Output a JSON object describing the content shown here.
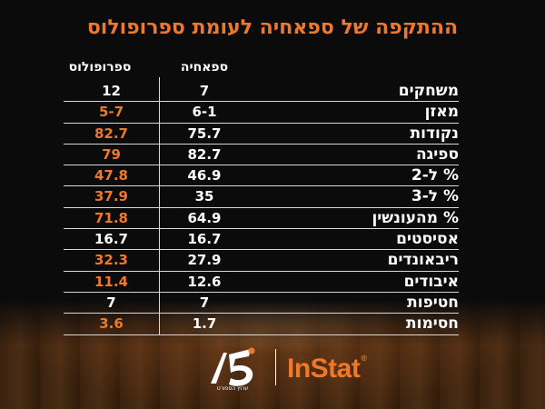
{
  "title": "ההתקפה של ספאחיה לעומת ספרופולוס",
  "columns": {
    "left": "ספרופולוס",
    "right": "ספאחיה"
  },
  "colors": {
    "accent": "#f0782a",
    "text": "#ffffff",
    "background": "#0b0b0b"
  },
  "rows": [
    {
      "label": "משחקים",
      "spahiya": "7",
      "sfor": "12",
      "sfor_highlight": false
    },
    {
      "label": "מאזן",
      "spahiya": "6-1",
      "sfor": "5-7",
      "sfor_highlight": true
    },
    {
      "label": "נקודות",
      "spahiya": "75.7",
      "sfor": "82.7",
      "sfor_highlight": true
    },
    {
      "label": "ספיגה",
      "spahiya": "82.7",
      "sfor": "79",
      "sfor_highlight": true
    },
    {
      "label": "% ל-2",
      "spahiya": "46.9",
      "sfor": "47.8",
      "sfor_highlight": true
    },
    {
      "label": "% ל-3",
      "spahiya": "35",
      "sfor": "37.9",
      "sfor_highlight": true
    },
    {
      "label": "% מהעונשין",
      "spahiya": "64.9",
      "sfor": "71.8",
      "sfor_highlight": true
    },
    {
      "label": "אסיסטים",
      "spahiya": "16.7",
      "sfor": "16.7",
      "sfor_highlight": false
    },
    {
      "label": "ריבאונדים",
      "spahiya": "27.9",
      "sfor": "32.3",
      "sfor_highlight": true
    },
    {
      "label": "איבודים",
      "spahiya": "12.6",
      "sfor": "11.4",
      "sfor_highlight": true
    },
    {
      "label": "חטיפות",
      "spahiya": "7",
      "sfor": "7",
      "sfor_highlight": false
    },
    {
      "label": "חסימות",
      "spahiya": "1.7",
      "sfor": "3.6",
      "sfor_highlight": true
    }
  ],
  "logos": {
    "sport5_caption": "ערוץ הספורט",
    "instat_text": "InStat",
    "instat_mark": "®",
    "sport5_icon": "sport5-logo-icon"
  }
}
